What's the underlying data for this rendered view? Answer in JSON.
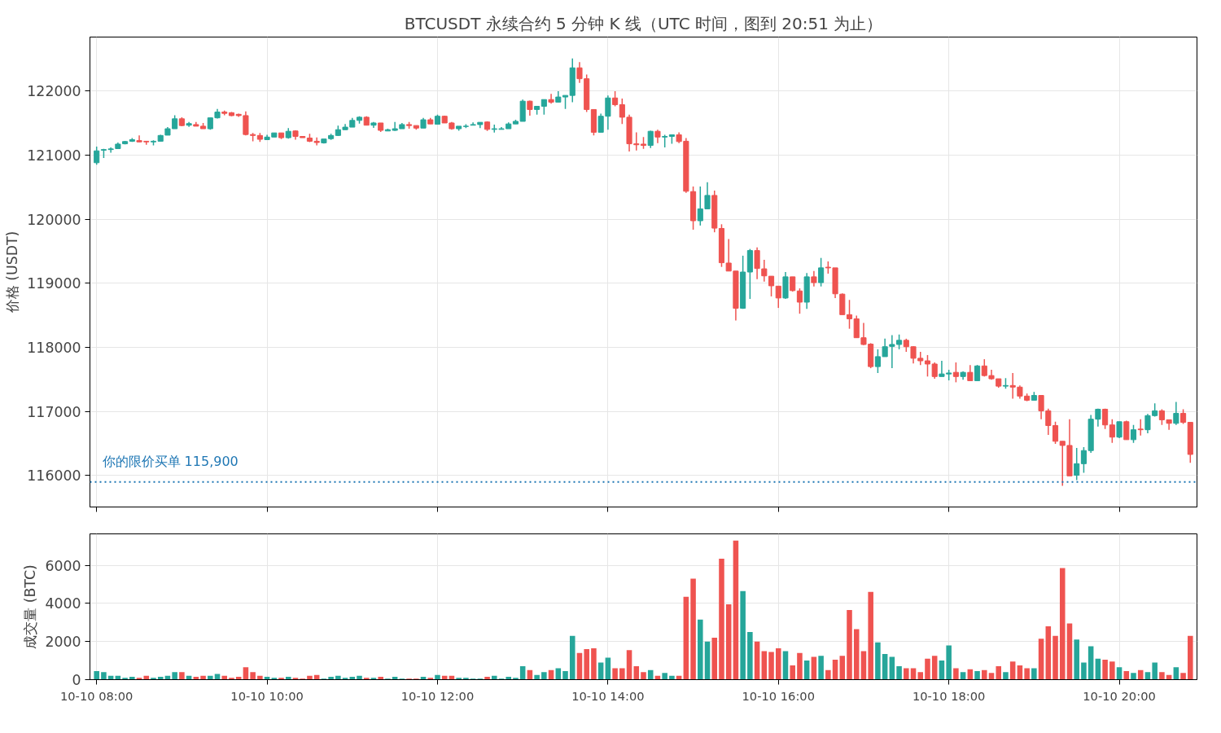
{
  "chart_data": [
    {
      "type": "candlestick",
      "title": "BTCUSDT 永续合约 5 分钟 K 线（UTC 时间，图到 20:51 为止）",
      "ylabel": "价格 (USDT)",
      "ohlc": [
        [
          120880,
          121130,
          120850,
          121065
        ],
        [
          121075,
          121095,
          120955,
          121085
        ],
        [
          121085,
          121120,
          121035,
          121095
        ],
        [
          121100,
          121195,
          121100,
          121170
        ],
        [
          121175,
          121220,
          121165,
          121210
        ],
        [
          121215,
          121265,
          121205,
          121240
        ],
        [
          121225,
          121305,
          121200,
          121205
        ],
        [
          121215,
          121220,
          121160,
          121205
        ],
        [
          121205,
          121230,
          121150,
          121215
        ],
        [
          121215,
          121315,
          121215,
          121305
        ],
        [
          121310,
          121435,
          121310,
          121410
        ],
        [
          121410,
          121620,
          121410,
          121565
        ],
        [
          121565,
          121590,
          121450,
          121460
        ],
        [
          121465,
          121515,
          121440,
          121490
        ],
        [
          121475,
          121515,
          121450,
          121450
        ],
        [
          121450,
          121500,
          121410,
          121410
        ],
        [
          121410,
          121580,
          121395,
          121580
        ],
        [
          121580,
          121720,
          121570,
          121670
        ],
        [
          121670,
          121695,
          121620,
          121650
        ],
        [
          121660,
          121670,
          121605,
          121615
        ],
        [
          121635,
          121645,
          121595,
          121615
        ],
        [
          121615,
          121680,
          121305,
          121320
        ],
        [
          121320,
          121345,
          121215,
          121305
        ],
        [
          121305,
          121345,
          121205,
          121245
        ],
        [
          121240,
          121315,
          121240,
          121280
        ],
        [
          121280,
          121345,
          121280,
          121345
        ],
        [
          121345,
          121345,
          121250,
          121270
        ],
        [
          121270,
          121420,
          121255,
          121370
        ],
        [
          121375,
          121385,
          121240,
          121290
        ],
        [
          121290,
          121290,
          121270,
          121270
        ],
        [
          121265,
          121330,
          121200,
          121215
        ],
        [
          121215,
          121275,
          121150,
          121195
        ],
        [
          121190,
          121250,
          121180,
          121250
        ],
        [
          121255,
          121330,
          121235,
          121305
        ],
        [
          121305,
          121460,
          121295,
          121395
        ],
        [
          121395,
          121485,
          121395,
          121435
        ],
        [
          121435,
          121580,
          121435,
          121540
        ],
        [
          121540,
          121605,
          121490,
          121590
        ],
        [
          121590,
          121605,
          121465,
          121465
        ],
        [
          121465,
          121515,
          121425,
          121500
        ],
        [
          121500,
          121500,
          121360,
          121385
        ],
        [
          121375,
          121410,
          121375,
          121395
        ],
        [
          121385,
          121515,
          121375,
          121410
        ],
        [
          121410,
          121500,
          121410,
          121475
        ],
        [
          121475,
          121515,
          121410,
          121460
        ],
        [
          121460,
          121460,
          121395,
          121420
        ],
        [
          121420,
          121580,
          121420,
          121550
        ],
        [
          121550,
          121580,
          121485,
          121485
        ],
        [
          121480,
          121630,
          121480,
          121605
        ],
        [
          121605,
          121615,
          121500,
          121500
        ],
        [
          121500,
          121515,
          121395,
          121410
        ],
        [
          121410,
          121450,
          121380,
          121450
        ],
        [
          121445,
          121480,
          121420,
          121450
        ],
        [
          121465,
          121510,
          121465,
          121475
        ],
        [
          121475,
          121510,
          121420,
          121510
        ],
        [
          121515,
          121525,
          121375,
          121400
        ],
        [
          121400,
          121475,
          121350,
          121410
        ],
        [
          121400,
          121435,
          121400,
          121410
        ],
        [
          121410,
          121510,
          121410,
          121485
        ],
        [
          121485,
          121550,
          121485,
          121525
        ],
        [
          121525,
          121865,
          121525,
          121840
        ],
        [
          121840,
          121850,
          121615,
          121710
        ],
        [
          121710,
          121760,
          121630,
          121760
        ],
        [
          121760,
          121865,
          121630,
          121865
        ],
        [
          121865,
          121955,
          121800,
          121825
        ],
        [
          121825,
          121995,
          121825,
          121905
        ],
        [
          121905,
          121930,
          121720,
          121930
        ],
        [
          121930,
          122505,
          121825,
          122360
        ],
        [
          122360,
          122450,
          122125,
          122190
        ],
        [
          122190,
          122255,
          121670,
          121710
        ],
        [
          121710,
          121710,
          121305,
          121355
        ],
        [
          121355,
          121645,
          121355,
          121605
        ],
        [
          121605,
          121930,
          121395,
          121890
        ],
        [
          121890,
          121995,
          121760,
          121785
        ],
        [
          121785,
          121880,
          121485,
          121590
        ],
        [
          121590,
          121630,
          121055,
          121175
        ],
        [
          121175,
          121355,
          121070,
          121160
        ],
        [
          121170,
          121280,
          121095,
          121150
        ],
        [
          121150,
          121380,
          121110,
          121370
        ],
        [
          121370,
          121395,
          121185,
          121280
        ],
        [
          121280,
          121315,
          121120,
          121290
        ],
        [
          121290,
          121315,
          121175,
          121315
        ],
        [
          121315,
          121355,
          121185,
          121210
        ],
        [
          121215,
          121265,
          120410,
          120435
        ],
        [
          120430,
          120510,
          119835,
          119975
        ],
        [
          119975,
          120510,
          119900,
          120160
        ],
        [
          120160,
          120575,
          120155,
          120370
        ],
        [
          120370,
          120445,
          119795,
          119860
        ],
        [
          119855,
          119920,
          119255,
          119320
        ],
        [
          119315,
          119690,
          119190,
          119190
        ],
        [
          119190,
          119190,
          118420,
          118610
        ],
        [
          118610,
          119430,
          118600,
          119175
        ],
        [
          119175,
          119535,
          118755,
          119510
        ],
        [
          119510,
          119560,
          119065,
          119230
        ],
        [
          119225,
          119365,
          119025,
          119115
        ],
        [
          119110,
          119110,
          118795,
          118960
        ],
        [
          118955,
          118955,
          118615,
          118770
        ],
        [
          118770,
          119175,
          118755,
          119100
        ],
        [
          119100,
          119100,
          118870,
          118885
        ],
        [
          118880,
          118920,
          118525,
          118705
        ],
        [
          118705,
          119160,
          118600,
          119100
        ],
        [
          119100,
          119190,
          118950,
          119010
        ],
        [
          119010,
          119395,
          118950,
          119240
        ],
        [
          119250,
          119340,
          119150,
          119240
        ],
        [
          119240,
          119240,
          118770,
          118835
        ],
        [
          118830,
          118840,
          118510,
          118510
        ],
        [
          118510,
          118740,
          118290,
          118445
        ],
        [
          118445,
          118495,
          118150,
          118150
        ],
        [
          118150,
          118380,
          118035,
          118045
        ],
        [
          118050,
          118065,
          117675,
          117700
        ],
        [
          117700,
          117970,
          117600,
          117855
        ],
        [
          117855,
          118135,
          117855,
          118010
        ],
        [
          118015,
          118190,
          117675,
          118045
        ],
        [
          118045,
          118200,
          117970,
          118110
        ],
        [
          118110,
          118135,
          117930,
          118010
        ],
        [
          118010,
          118020,
          117750,
          117830
        ],
        [
          117830,
          117930,
          117725,
          117790
        ],
        [
          117790,
          117880,
          117545,
          117740
        ],
        [
          117740,
          117765,
          117510,
          117545
        ],
        [
          117545,
          117790,
          117545,
          117585
        ],
        [
          117585,
          117650,
          117485,
          117600
        ],
        [
          117610,
          117765,
          117455,
          117545
        ],
        [
          117545,
          117625,
          117495,
          117610
        ],
        [
          117610,
          117725,
          117480,
          117480
        ],
        [
          117480,
          117725,
          117480,
          117710
        ],
        [
          117710,
          117815,
          117545,
          117560
        ],
        [
          117560,
          117650,
          117495,
          117510
        ],
        [
          117510,
          117510,
          117370,
          117395
        ],
        [
          117395,
          117520,
          117355,
          117405
        ],
        [
          117405,
          117600,
          117200,
          117380
        ],
        [
          117380,
          117405,
          117200,
          117240
        ],
        [
          117240,
          117280,
          117160,
          117175
        ],
        [
          117175,
          117305,
          117175,
          117250
        ],
        [
          117250,
          117250,
          116880,
          117010
        ],
        [
          117010,
          117045,
          116635,
          116780
        ],
        [
          116780,
          116840,
          116495,
          116535
        ],
        [
          116535,
          116535,
          115840,
          116470
        ],
        [
          116470,
          116880,
          115995,
          115995
        ],
        [
          116005,
          116430,
          115930,
          116185
        ],
        [
          116185,
          116445,
          116045,
          116390
        ],
        [
          116390,
          116945,
          116355,
          116880
        ],
        [
          116880,
          117045,
          116765,
          117035
        ],
        [
          117035,
          117045,
          116725,
          116790
        ],
        [
          116790,
          116880,
          116510,
          116600
        ],
        [
          116600,
          116840,
          116585,
          116840
        ],
        [
          116840,
          116855,
          116560,
          116560
        ],
        [
          116560,
          116790,
          116510,
          116715
        ],
        [
          116725,
          116880,
          116625,
          116715
        ],
        [
          116715,
          116960,
          116660,
          116935
        ],
        [
          116935,
          117125,
          116920,
          117010
        ],
        [
          117010,
          117035,
          116790,
          116870
        ],
        [
          116870,
          116870,
          116715,
          116815
        ],
        [
          116815,
          117150,
          116790,
          116970
        ],
        [
          116970,
          117035,
          116805,
          116830
        ],
        [
          116830,
          116830,
          116200,
          116330
        ]
      ],
      "colors": [
        "#26a69a",
        "#26a69a",
        "#26a69a",
        "#26a69a",
        "#26a69a",
        "#26a69a",
        "#ef5350",
        "#ef5350",
        "#26a69a",
        "#26a69a",
        "#26a69a",
        "#26a69a",
        "#ef5350",
        "#26a69a",
        "#ef5350",
        "#ef5350",
        "#26a69a",
        "#26a69a",
        "#ef5350",
        "#ef5350",
        "#ef5350",
        "#ef5350",
        "#ef5350",
        "#ef5350",
        "#26a69a",
        "#26a69a",
        "#ef5350",
        "#26a69a",
        "#ef5350",
        "#ef5350",
        "#ef5350",
        "#ef5350",
        "#26a69a",
        "#26a69a",
        "#26a69a",
        "#26a69a",
        "#26a69a",
        "#26a69a",
        "#ef5350",
        "#26a69a",
        "#ef5350",
        "#26a69a",
        "#26a69a",
        "#26a69a",
        "#ef5350",
        "#ef5350",
        "#26a69a",
        "#ef5350",
        "#26a69a",
        "#ef5350",
        "#ef5350",
        "#26a69a",
        "#26a69a",
        "#26a69a",
        "#26a69a",
        "#ef5350",
        "#26a69a",
        "#26a69a",
        "#26a69a",
        "#26a69a",
        "#26a69a",
        "#ef5350",
        "#26a69a",
        "#26a69a",
        "#ef5350",
        "#26a69a",
        "#26a69a",
        "#26a69a",
        "#ef5350",
        "#ef5350",
        "#ef5350",
        "#26a69a",
        "#26a69a",
        "#ef5350",
        "#ef5350",
        "#ef5350",
        "#ef5350",
        "#ef5350",
        "#26a69a",
        "#ef5350",
        "#26a69a",
        "#26a69a",
        "#ef5350",
        "#ef5350",
        "#ef5350",
        "#26a69a",
        "#26a69a",
        "#ef5350",
        "#ef5350",
        "#ef5350",
        "#ef5350",
        "#26a69a",
        "#26a69a",
        "#ef5350",
        "#ef5350",
        "#ef5350",
        "#ef5350",
        "#26a69a",
        "#ef5350",
        "#ef5350",
        "#26a69a",
        "#ef5350",
        "#26a69a",
        "#ef5350",
        "#ef5350",
        "#ef5350",
        "#ef5350",
        "#ef5350",
        "#ef5350",
        "#ef5350",
        "#26a69a",
        "#26a69a",
        "#26a69a",
        "#26a69a",
        "#ef5350",
        "#ef5350",
        "#ef5350",
        "#ef5350",
        "#ef5350",
        "#26a69a",
        "#26a69a",
        "#ef5350",
        "#26a69a",
        "#ef5350",
        "#26a69a",
        "#ef5350",
        "#ef5350",
        "#ef5350",
        "#26a69a",
        "#ef5350",
        "#ef5350",
        "#ef5350",
        "#26a69a",
        "#ef5350",
        "#ef5350",
        "#ef5350",
        "#ef5350",
        "#ef5350",
        "#26a69a",
        "#26a69a",
        "#26a69a",
        "#26a69a",
        "#ef5350",
        "#ef5350",
        "#26a69a",
        "#ef5350",
        "#26a69a",
        "#ef5350",
        "#26a69a",
        "#26a69a",
        "#ef5350",
        "#ef5350",
        "#26a69a",
        "#ef5350",
        "#ef5350"
      ],
      "ylim": [
        115510,
        122840
      ],
      "yticks": [
        116000,
        117000,
        118000,
        119000,
        120000,
        121000,
        122000
      ],
      "tick_labels": "y",
      "grid": true,
      "ref_lines": [
        {
          "axis": "y",
          "value": 115900,
          "label": "你的限价买单 115,900",
          "color": "#1f77b4",
          "line_style": "dotted"
        }
      ]
    },
    {
      "type": "bar",
      "ylabel": "成交量 (BTC)",
      "categories": [
        "10-10 08:00",
        null,
        null,
        null,
        null,
        null,
        null,
        null,
        null,
        null,
        null,
        null,
        null,
        null,
        null,
        null,
        null,
        null,
        null,
        null,
        null,
        null,
        null,
        null,
        "10-10 10:00",
        null,
        null,
        null,
        null,
        null,
        null,
        null,
        null,
        null,
        null,
        null,
        null,
        null,
        null,
        null,
        null,
        null,
        null,
        null,
        null,
        null,
        null,
        null,
        "10-10 12:00",
        null,
        null,
        null,
        null,
        null,
        null,
        null,
        null,
        null,
        null,
        null,
        null,
        null,
        null,
        null,
        null,
        null,
        null,
        null,
        null,
        null,
        null,
        null,
        "10-10 14:00",
        null,
        null,
        null,
        null,
        null,
        null,
        null,
        null,
        null,
        null,
        null,
        null,
        null,
        null,
        null,
        null,
        null,
        null,
        null,
        null,
        null,
        null,
        null,
        "10-10 16:00",
        null,
        null,
        null,
        null,
        null,
        null,
        null,
        null,
        null,
        null,
        null,
        null,
        null,
        null,
        null,
        null,
        null,
        null,
        null,
        null,
        null,
        null,
        null,
        "10-10 18:00",
        null,
        null,
        null,
        null,
        null,
        null,
        null,
        null,
        null,
        null,
        null,
        null,
        null,
        null,
        null,
        null,
        null,
        null,
        null,
        null,
        null,
        null,
        null,
        "10-10 20:00",
        null,
        null,
        null,
        null,
        null,
        null,
        null,
        null,
        null,
        null
      ],
      "values": [
        450,
        400,
        200,
        200,
        100,
        150,
        100,
        200,
        100,
        150,
        200,
        400,
        400,
        200,
        150,
        200,
        200,
        300,
        200,
        100,
        150,
        650,
        400,
        200,
        150,
        100,
        100,
        150,
        100,
        50,
        200,
        250,
        50,
        150,
        200,
        100,
        150,
        200,
        100,
        100,
        150,
        50,
        150,
        50,
        50,
        50,
        150,
        100,
        250,
        200,
        200,
        100,
        100,
        50,
        50,
        150,
        200,
        50,
        150,
        100,
        700,
        500,
        250,
        400,
        500,
        600,
        450,
        2300,
        1400,
        1600,
        1650,
        900,
        1150,
        600,
        600,
        1550,
        700,
        400,
        500,
        200,
        350,
        200,
        200,
        4350,
        5300,
        3150,
        2000,
        2200,
        6350,
        3950,
        7300,
        4650,
        2500,
        2000,
        1500,
        1450,
        1650,
        1500,
        750,
        1400,
        1000,
        1200,
        1250,
        500,
        1050,
        1250,
        3650,
        2650,
        1500,
        4600,
        1950,
        1350,
        1200,
        700,
        600,
        600,
        400,
        1100,
        1250,
        1000,
        1800,
        600,
        400,
        550,
        450,
        500,
        350,
        700,
        400,
        950,
        750,
        600,
        600,
        2150,
        2800,
        2300,
        5850,
        2950,
        2100,
        900,
        1750,
        1100,
        1050,
        950,
        650,
        450,
        350,
        500,
        400,
        900,
        400,
        250,
        650,
        350,
        2300
      ],
      "colors": [
        "#26a69a",
        "#26a69a",
        "#26a69a",
        "#26a69a",
        "#26a69a",
        "#26a69a",
        "#ef5350",
        "#ef5350",
        "#26a69a",
        "#26a69a",
        "#26a69a",
        "#26a69a",
        "#ef5350",
        "#26a69a",
        "#ef5350",
        "#ef5350",
        "#26a69a",
        "#26a69a",
        "#ef5350",
        "#ef5350",
        "#ef5350",
        "#ef5350",
        "#ef5350",
        "#ef5350",
        "#26a69a",
        "#26a69a",
        "#ef5350",
        "#26a69a",
        "#ef5350",
        "#ef5350",
        "#ef5350",
        "#ef5350",
        "#26a69a",
        "#26a69a",
        "#26a69a",
        "#26a69a",
        "#26a69a",
        "#26a69a",
        "#ef5350",
        "#26a69a",
        "#ef5350",
        "#26a69a",
        "#26a69a",
        "#26a69a",
        "#ef5350",
        "#ef5350",
        "#26a69a",
        "#ef5350",
        "#26a69a",
        "#ef5350",
        "#ef5350",
        "#26a69a",
        "#26a69a",
        "#26a69a",
        "#26a69a",
        "#ef5350",
        "#26a69a",
        "#26a69a",
        "#26a69a",
        "#26a69a",
        "#26a69a",
        "#ef5350",
        "#26a69a",
        "#26a69a",
        "#ef5350",
        "#26a69a",
        "#26a69a",
        "#26a69a",
        "#ef5350",
        "#ef5350",
        "#ef5350",
        "#26a69a",
        "#26a69a",
        "#ef5350",
        "#ef5350",
        "#ef5350",
        "#ef5350",
        "#ef5350",
        "#26a69a",
        "#ef5350",
        "#26a69a",
        "#26a69a",
        "#ef5350",
        "#ef5350",
        "#ef5350",
        "#26a69a",
        "#26a69a",
        "#ef5350",
        "#ef5350",
        "#ef5350",
        "#ef5350",
        "#26a69a",
        "#26a69a",
        "#ef5350",
        "#ef5350",
        "#ef5350",
        "#ef5350",
        "#26a69a",
        "#ef5350",
        "#ef5350",
        "#26a69a",
        "#ef5350",
        "#26a69a",
        "#ef5350",
        "#ef5350",
        "#ef5350",
        "#ef5350",
        "#ef5350",
        "#ef5350",
        "#ef5350",
        "#26a69a",
        "#26a69a",
        "#26a69a",
        "#26a69a",
        "#ef5350",
        "#ef5350",
        "#ef5350",
        "#ef5350",
        "#ef5350",
        "#26a69a",
        "#26a69a",
        "#ef5350",
        "#26a69a",
        "#ef5350",
        "#26a69a",
        "#ef5350",
        "#ef5350",
        "#ef5350",
        "#26a69a",
        "#ef5350",
        "#ef5350",
        "#ef5350",
        "#26a69a",
        "#ef5350",
        "#ef5350",
        "#ef5350",
        "#ef5350",
        "#ef5350",
        "#26a69a",
        "#26a69a",
        "#26a69a",
        "#26a69a",
        "#ef5350",
        "#ef5350",
        "#26a69a",
        "#ef5350",
        "#26a69a",
        "#ef5350",
        "#26a69a",
        "#26a69a",
        "#ef5350",
        "#ef5350",
        "#26a69a",
        "#ef5350",
        "#ef5350"
      ],
      "ylim": [
        0,
        7650
      ],
      "yticks": [
        0,
        2000,
        4000,
        6000
      ],
      "grid": true
    }
  ]
}
